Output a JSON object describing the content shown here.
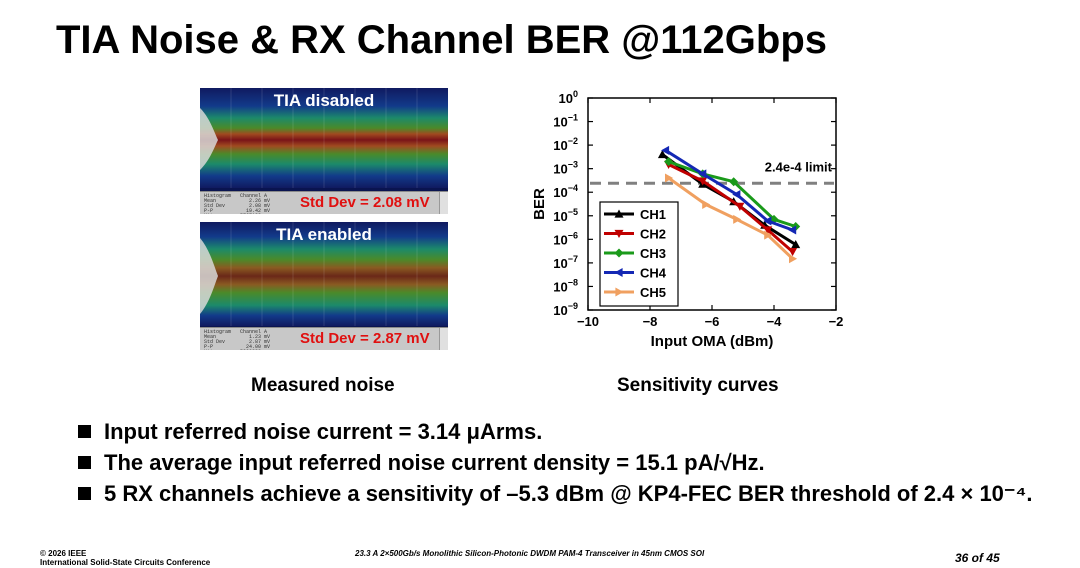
{
  "title": "TIA Noise & RX Channel BER @112Gbps",
  "panels": [
    {
      "label": "TIA disabled",
      "std_dev": "Std Dev = 2.08 mV",
      "stats": "Histogram   Channel A\nMean           2.26 mV\nStd Dev        2.08 mV\nP-P           19.42 mV\nHits        5767188"
    },
    {
      "label": "TIA enabled",
      "std_dev": "Std Dev = 2.87 mV",
      "stats": "Histogram   Channel A\nMean           1.23 mV\nStd Dev        2.87 mV\nP-P           24.00 mV\nHits        5290388"
    }
  ],
  "captions": {
    "left": "Measured noise",
    "right": "Sensitivity curves"
  },
  "bullets": [
    "Input referred noise current = 3.14 μArms.",
    "The average input referred noise current density = 15.1 pA/√Hz.",
    "5 RX channels achieve a sensitivity of –5.3 dBm @ KP4-FEC BER threshold of 2.4 × 10⁻⁴."
  ],
  "footer": {
    "left": "© 2026 IEEE\nInternational Solid-State Circuits Conference",
    "center": "23.3 A 2×500Gb/s Monolithic Silicon-Photonic DWDM PAM-4 Transceiver in 45nm CMOS SOI",
    "page": "36 of 45"
  },
  "chart_data": {
    "type": "line",
    "xlabel": "Input OMA (dBm)",
    "ylabel": "BER",
    "x_scale": "linear",
    "y_scale": "log",
    "xlim": [
      -10,
      -2
    ],
    "ylim": [
      1e-09,
      1
    ],
    "x_ticks": [
      -10,
      -8,
      -6,
      -4,
      -2
    ],
    "x_tick_labels": [
      "−10",
      "−8",
      "−6",
      "−4",
      "−2"
    ],
    "y_tick_exponents": [
      0,
      -1,
      -2,
      -3,
      -4,
      -5,
      -6,
      -7,
      -8,
      -9
    ],
    "y_tick_labels": [
      "10",
      "10",
      "10",
      "10",
      "10",
      "10",
      "10",
      "10",
      "10",
      "10"
    ],
    "y_tick_sups": [
      "0",
      "−1",
      "−2",
      "−3",
      "−4",
      "−5",
      "−6",
      "−7",
      "−8",
      "−9"
    ],
    "legend_position": "bottom-left",
    "annotation": {
      "text": "2.4e-4 limit",
      "y": 0.00024,
      "style": "dashed",
      "color": "#808080"
    },
    "series": [
      {
        "name": "CH1",
        "color": "#000000",
        "marker": "triangle-up",
        "x": [
          -7.6,
          -6.3,
          -5.3,
          -4.3,
          -3.3
        ],
        "y": [
          0.004,
          0.00022,
          4e-05,
          4e-06,
          6e-07
        ]
      },
      {
        "name": "CH2",
        "color": "#c00000",
        "marker": "triangle-down",
        "x": [
          -7.4,
          -6.3,
          -5.1,
          -4.2,
          -3.4
        ],
        "y": [
          0.0015,
          0.0003,
          2.5e-05,
          2.5e-06,
          3e-07
        ]
      },
      {
        "name": "CH3",
        "color": "#1a9a1a",
        "marker": "diamond",
        "x": [
          -7.4,
          -6.3,
          -5.3,
          -4.0,
          -3.3
        ],
        "y": [
          0.002,
          0.0006,
          0.00028,
          7e-06,
          3.5e-06
        ]
      },
      {
        "name": "CH4",
        "color": "#1428b4",
        "marker": "triangle-left",
        "x": [
          -7.5,
          -6.3,
          -5.2,
          -4.2,
          -3.4
        ],
        "y": [
          0.006,
          0.0006,
          8e-05,
          6e-06,
          2.5e-06
        ]
      },
      {
        "name": "CH5",
        "color": "#f0a060",
        "marker": "triangle-right",
        "x": [
          -7.4,
          -6.2,
          -5.2,
          -4.2,
          -3.4
        ],
        "y": [
          0.0004,
          3e-05,
          7e-06,
          1.5e-06,
          1.5e-07
        ]
      }
    ]
  },
  "colors": {
    "title": "#000000",
    "std_dev": "#e01010",
    "scope_bg": "#0a1450"
  }
}
